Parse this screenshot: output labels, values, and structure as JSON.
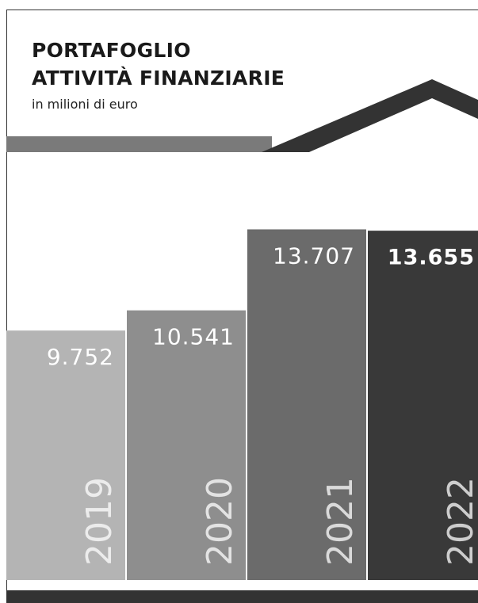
{
  "chart_data": {
    "type": "bar",
    "title": "PORTAFOGLIO\nATTIVITÀ FINANZIARIE",
    "subtitle": "in milioni di euro",
    "categories": [
      "2019",
      "2020",
      "2021",
      "2022"
    ],
    "values": [
      9752,
      10541,
      13707,
      13655
    ],
    "value_labels": [
      "9.752",
      "10.541",
      "13.707",
      "13.655"
    ],
    "colors": [
      "#b4b4b4",
      "#8e8e8e",
      "#6b6b6b",
      "#393939"
    ],
    "ylim": [
      0,
      14000
    ]
  }
}
